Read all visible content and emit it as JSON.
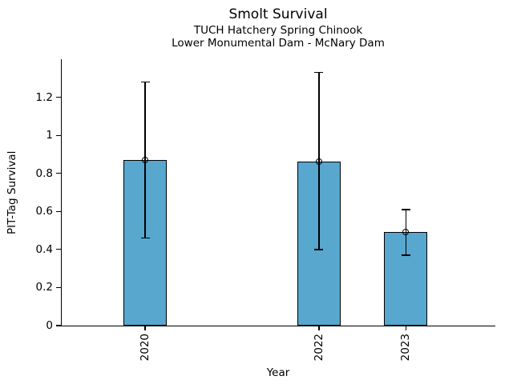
{
  "chart_data": {
    "type": "bar",
    "title": "Smolt Survival",
    "subtitle_line1": "TUCH Hatchery Spring Chinook",
    "subtitle_line2": "Lower Monumental Dam - McNary Dam",
    "xlabel": "Year",
    "ylabel": "PIT-Tag Survival",
    "categories": [
      "2020",
      "2022",
      "2023"
    ],
    "x_values": [
      2020,
      2022,
      2023
    ],
    "values": [
      0.87,
      0.86,
      0.49
    ],
    "error_low": [
      0.46,
      0.4,
      0.37
    ],
    "error_high": [
      1.28,
      1.33,
      0.61
    ],
    "bar_width_years": 0.5,
    "xlim": [
      2019.04,
      2024.02
    ],
    "ylim": [
      0,
      1.4
    ],
    "yticks": [
      0,
      0.2,
      0.4,
      0.6,
      0.8,
      1,
      1.2
    ],
    "ytick_labels": [
      "0",
      "0.2",
      "0.4",
      "0.6",
      "0.8",
      "1",
      "1.2"
    ],
    "xtick_labels": [
      "2020",
      "2022",
      "2023"
    ],
    "grid": false,
    "legend": null,
    "marker": "open-circle",
    "colors": {
      "bar_fill": "#57A7CE",
      "bar_edge": "#000000",
      "error_bar": "#000000",
      "text": "#000000",
      "background": "#FFFFFF"
    }
  }
}
